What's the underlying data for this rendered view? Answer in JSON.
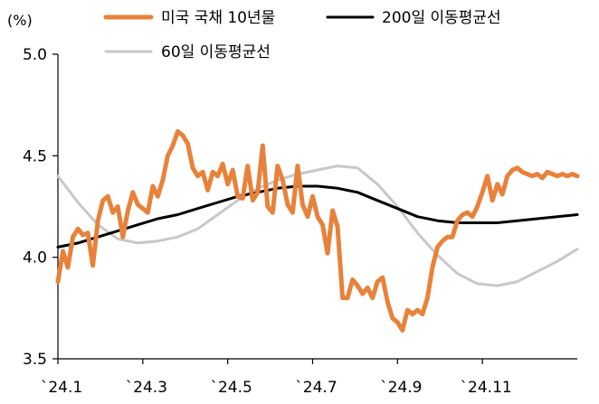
{
  "chart_data": {
    "type": "line",
    "unit_label": "(%)",
    "xlabel": "",
    "ylabel": "",
    "ylim": [
      3.5,
      5.0
    ],
    "y_ticks": [
      "5.0",
      "4.5",
      "4.0",
      "3.5"
    ],
    "x_ticks": [
      "`24.1",
      "`24.3",
      "`24.5",
      "`24.7",
      "`24.9",
      "`24.11"
    ],
    "x_range": [
      0,
      52
    ],
    "x_tick_positions": [
      0,
      8.5,
      17,
      25.5,
      34,
      42.5
    ],
    "grid": false,
    "legend_position": "top",
    "series": [
      {
        "name": "미국 국채 10년물",
        "color": "#E8823A",
        "x": [
          0,
          0.5,
          1,
          1.5,
          2,
          2.5,
          3,
          3.5,
          4,
          4.5,
          5,
          5.5,
          6,
          6.5,
          7,
          7.5,
          8,
          8.5,
          9,
          9.5,
          10,
          10.5,
          11,
          11.5,
          12,
          12.5,
          13,
          13.5,
          14,
          14.5,
          15,
          15.5,
          16,
          16.5,
          17,
          17.5,
          18,
          18.5,
          19,
          19.5,
          20,
          20.5,
          21,
          21.5,
          22,
          22.5,
          23,
          23.5,
          24,
          24.5,
          25,
          25.5,
          26,
          26.5,
          27,
          27.5,
          28,
          28.5,
          29,
          29.5,
          30,
          30.5,
          31,
          31.5,
          32,
          32.5,
          33,
          33.5,
          34,
          34.5,
          35,
          35.5,
          36,
          36.5,
          37,
          37.5,
          38,
          38.5,
          39,
          39.5,
          40,
          40.5,
          41,
          41.5,
          42,
          42.5,
          43,
          43.5,
          44,
          44.5,
          45,
          45.5,
          46,
          46.5,
          47,
          47.5,
          48,
          48.5,
          49,
          49.5,
          50,
          50.5,
          51,
          51.5,
          52
        ],
        "values": [
          3.88,
          4.03,
          3.95,
          4.1,
          4.14,
          4.11,
          4.12,
          3.96,
          4.18,
          4.28,
          4.3,
          4.22,
          4.25,
          4.1,
          4.23,
          4.32,
          4.26,
          4.24,
          4.22,
          4.35,
          4.3,
          4.38,
          4.5,
          4.55,
          4.62,
          4.6,
          4.56,
          4.44,
          4.4,
          4.42,
          4.33,
          4.42,
          4.4,
          4.46,
          4.36,
          4.43,
          4.3,
          4.29,
          4.45,
          4.28,
          4.32,
          4.55,
          4.25,
          4.22,
          4.45,
          4.38,
          4.26,
          4.22,
          4.45,
          4.26,
          4.2,
          4.3,
          4.2,
          4.16,
          4.02,
          4.23,
          4.15,
          3.8,
          3.8,
          3.89,
          3.86,
          3.82,
          3.85,
          3.8,
          3.88,
          3.9,
          3.78,
          3.7,
          3.68,
          3.64,
          3.74,
          3.72,
          3.74,
          3.72,
          3.8,
          3.95,
          4.05,
          4.08,
          4.1,
          4.1,
          4.18,
          4.21,
          4.22,
          4.2,
          4.25,
          4.32,
          4.4,
          4.28,
          4.36,
          4.31,
          4.4,
          4.43,
          4.44,
          4.42,
          4.41,
          4.4,
          4.41,
          4.39,
          4.42,
          4.41,
          4.4,
          4.41,
          4.4,
          4.41,
          4.4
        ]
      },
      {
        "name": "200일 이동평균선",
        "color": "#000000",
        "x": [
          0,
          2,
          4,
          6,
          8,
          10,
          12,
          14,
          16,
          18,
          20,
          22,
          24,
          26,
          28,
          30,
          32,
          34,
          36,
          38,
          40,
          42,
          44,
          46,
          48,
          50,
          52
        ],
        "values": [
          4.05,
          4.07,
          4.1,
          4.13,
          4.16,
          4.19,
          4.21,
          4.24,
          4.27,
          4.3,
          4.32,
          4.34,
          4.35,
          4.35,
          4.34,
          4.32,
          4.28,
          4.24,
          4.2,
          4.18,
          4.17,
          4.17,
          4.17,
          4.18,
          4.19,
          4.2,
          4.21
        ]
      },
      {
        "name": "60일 이동평균선",
        "color": "#C8C8C8",
        "x": [
          0,
          2,
          4,
          6,
          8,
          10,
          12,
          14,
          16,
          18,
          20,
          22,
          24,
          26,
          28,
          30,
          32,
          34,
          36,
          38,
          40,
          42,
          44,
          46,
          48,
          50,
          52
        ],
        "values": [
          4.4,
          4.27,
          4.16,
          4.09,
          4.07,
          4.08,
          4.1,
          4.14,
          4.21,
          4.28,
          4.34,
          4.38,
          4.41,
          4.43,
          4.45,
          4.44,
          4.36,
          4.25,
          4.12,
          4.01,
          3.92,
          3.87,
          3.86,
          3.88,
          3.93,
          3.98,
          4.04
        ]
      }
    ]
  }
}
